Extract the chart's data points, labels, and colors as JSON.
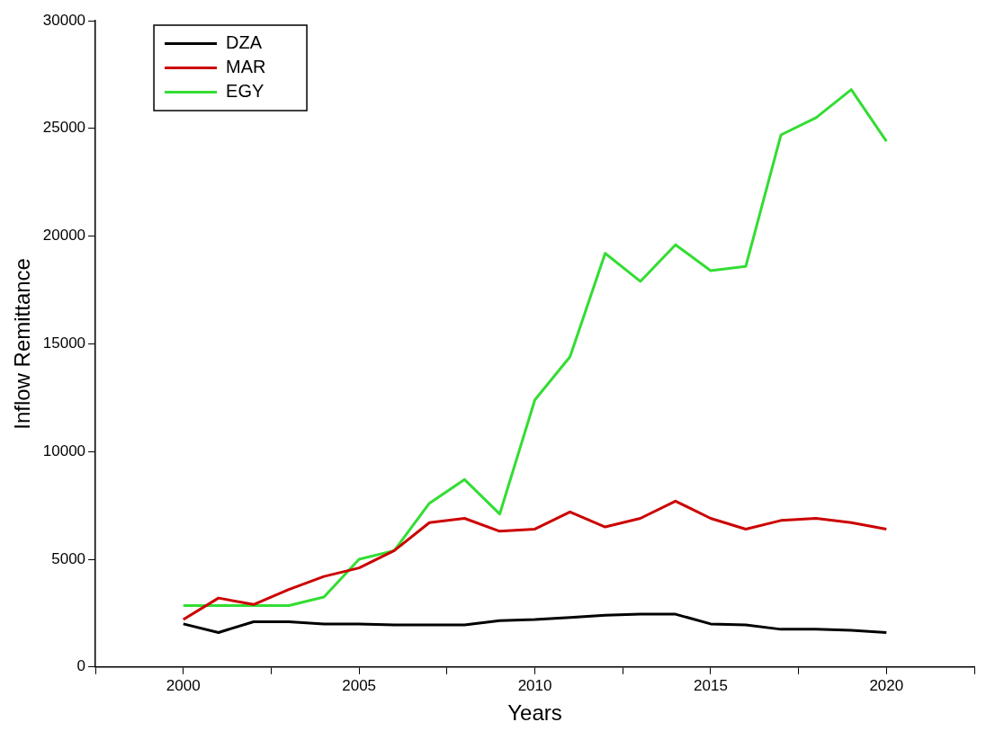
{
  "chart_data": {
    "type": "line",
    "xlabel": "Years",
    "ylabel": "Inflow Remittance",
    "x": [
      2000,
      2001,
      2002,
      2003,
      2004,
      2005,
      2006,
      2007,
      2008,
      2009,
      2010,
      2011,
      2012,
      2013,
      2014,
      2015,
      2016,
      2017,
      2018,
      2019,
      2020
    ],
    "series": [
      {
        "name": "DZA",
        "color": "#000000",
        "values": [
          2000,
          1600,
          2100,
          2100,
          2000,
          2000,
          1950,
          1950,
          1950,
          2150,
          2200,
          2300,
          2400,
          2450,
          2450,
          2000,
          1950,
          1750,
          1750,
          1700,
          1600
        ]
      },
      {
        "name": "MAR",
        "color": "#cc0000",
        "values": [
          2200,
          3200,
          2900,
          3600,
          4200,
          4600,
          5400,
          6700,
          6900,
          6300,
          6400,
          7200,
          6500,
          6900,
          7700,
          6900,
          6400,
          6800,
          6900,
          6700,
          6400
        ]
      },
      {
        "name": "EGY",
        "color": "#33dd33",
        "values": [
          2850,
          2850,
          2850,
          2850,
          3250,
          5000,
          5400,
          7600,
          8700,
          7100,
          12400,
          14400,
          19200,
          17900,
          19600,
          18400,
          18600,
          24700,
          25500,
          26800,
          24400
        ]
      }
    ],
    "xlim": [
      1997.5,
      2022.5
    ],
    "xticks": [
      {
        "value": 1997.5,
        "label": null
      },
      2000,
      {
        "value": 2002.5,
        "label": null
      },
      2005,
      {
        "value": 2007.5,
        "label": null
      },
      2010,
      {
        "value": 2012.5,
        "label": null
      },
      2015,
      {
        "value": 2017.5,
        "label": null
      },
      2020,
      {
        "value": 2022.5,
        "label": null
      }
    ],
    "ylim": [
      0,
      30000
    ],
    "yticks": [
      0,
      5000,
      10000,
      15000,
      20000,
      25000,
      30000
    ],
    "grid": false,
    "legend": "top left",
    "marker": "none",
    "line_style": "solid"
  }
}
